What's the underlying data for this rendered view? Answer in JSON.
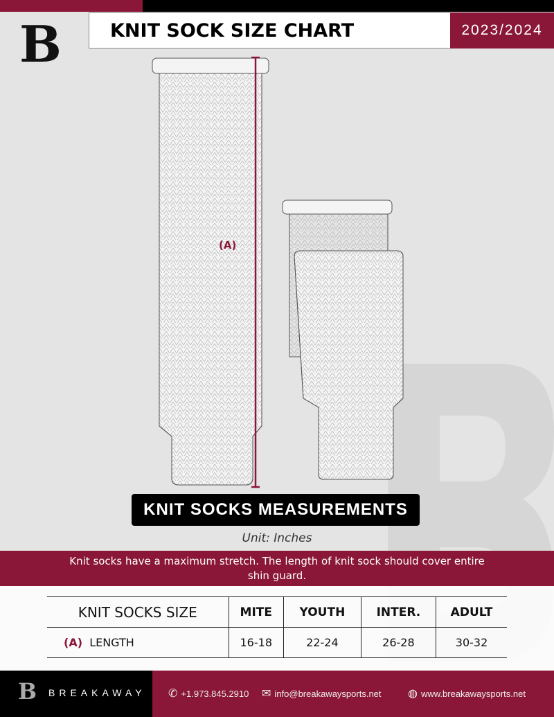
{
  "header": {
    "title": "KNIT SOCK SIZE CHART",
    "season": "2023/2024",
    "logo": "B"
  },
  "diagram": {
    "measure_label": "(A)"
  },
  "measurements_label": "KNIT SOCKS MEASUREMENTS",
  "unit": "Unit: Inches",
  "note": "Knit socks have a maximum stretch. The length of knit sock should cover entire shin guard.",
  "table": {
    "headers": [
      "KNIT SOCKS SIZE",
      "MITE",
      "YOUTH",
      "INTER.",
      "ADULT"
    ],
    "rows": [
      {
        "marker": "(A)",
        "label": "LENGTH",
        "values": [
          "16-18",
          "22-24",
          "26-28",
          "30-32"
        ]
      }
    ]
  },
  "footer": {
    "brand": "BREAKAWAY",
    "phone": "+1.973.845.2910",
    "email": "info@breakawaysports.net",
    "website": "www.breakawaysports.net"
  },
  "colors": {
    "accent": "#8a1737",
    "background": "#e3e4e3"
  }
}
